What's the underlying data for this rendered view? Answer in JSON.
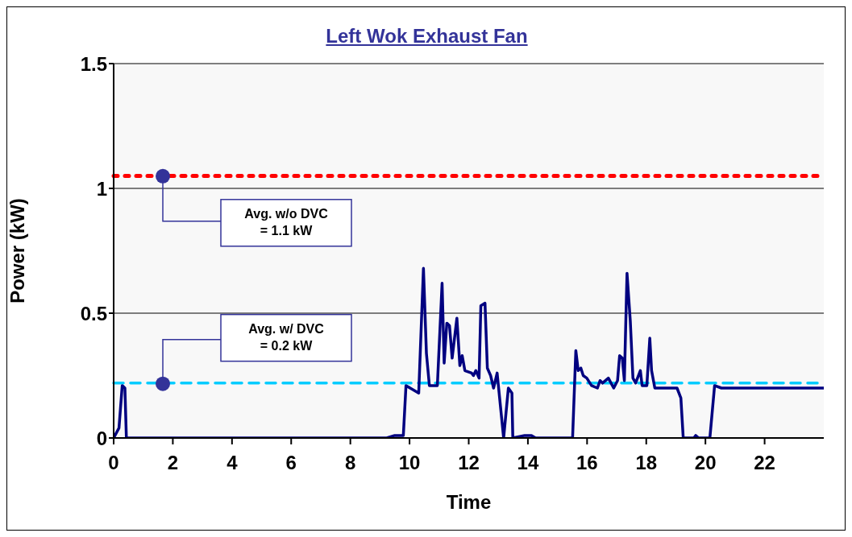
{
  "chart_data": {
    "type": "line",
    "title": "Left Wok Exhaust Fan",
    "xlabel": "Time",
    "ylabel": "Power (kW)",
    "xlim": [
      0,
      24
    ],
    "xticks": [
      0,
      2,
      4,
      6,
      8,
      10,
      12,
      14,
      16,
      18,
      20,
      22
    ],
    "ylim": [
      0,
      1.5
    ],
    "yticks": [
      0,
      0.5,
      1,
      1.5
    ],
    "grid": "y",
    "legend": false,
    "marker": "none",
    "line_style": "solid",
    "ref_lines": [
      {
        "axis": "y",
        "value": 1.05,
        "color": "#ff0000",
        "line_style": "dotted"
      },
      {
        "axis": "y",
        "value": 0.22,
        "color": "#00ccff",
        "line_style": "dashed"
      }
    ],
    "annotations": [
      "Avg. w/o DVC\n= 1.1 kW",
      "Avg. w/ DVC\n= 0.2 kW"
    ],
    "series": [
      {
        "color": "#000080",
        "x": [
          0,
          0.18,
          0.29,
          0.38,
          0.43,
          9.23,
          9.5,
          9.79,
          9.88,
          10.31,
          10.47,
          10.57,
          10.67,
          10.94,
          11.1,
          11.17,
          11.26,
          11.35,
          11.44,
          11.6,
          11.7,
          11.78,
          11.87,
          12.1,
          12.16,
          12.24,
          12.35,
          12.41,
          12.55,
          12.63,
          12.74,
          12.84,
          12.96,
          13.18,
          13.34,
          13.46,
          13.49,
          13.89,
          14.12,
          14.26,
          15.51,
          15.62,
          15.7,
          15.79,
          15.87,
          15.99,
          16.15,
          16.35,
          16.44,
          16.52,
          16.72,
          16.9,
          17.03,
          17.1,
          17.19,
          17.26,
          17.35,
          17.46,
          17.55,
          17.64,
          17.8,
          17.86,
          18.02,
          18.12,
          18.18,
          18.29,
          19.04,
          19.17,
          19.25,
          19.61,
          19.67,
          19.77,
          20.15,
          20.31,
          20.54,
          24
        ],
        "values": [
          0,
          0.04,
          0.21,
          0.2,
          0,
          0,
          0.01,
          0.01,
          0.21,
          0.18,
          0.68,
          0.34,
          0.21,
          0.21,
          0.62,
          0.3,
          0.46,
          0.45,
          0.32,
          0.48,
          0.29,
          0.33,
          0.27,
          0.26,
          0.25,
          0.27,
          0.24,
          0.53,
          0.54,
          0.28,
          0.25,
          0.2,
          0.26,
          0,
          0.2,
          0.18,
          0,
          0.01,
          0.01,
          0,
          0,
          0.35,
          0.27,
          0.28,
          0.25,
          0.24,
          0.21,
          0.2,
          0.23,
          0.22,
          0.24,
          0.2,
          0.23,
          0.33,
          0.32,
          0.23,
          0.66,
          0.47,
          0.24,
          0.22,
          0.27,
          0.21,
          0.21,
          0.4,
          0.27,
          0.2,
          0.2,
          0.16,
          0,
          0,
          0.01,
          0,
          0,
          0.21,
          0.2,
          0.2
        ]
      }
    ]
  }
}
